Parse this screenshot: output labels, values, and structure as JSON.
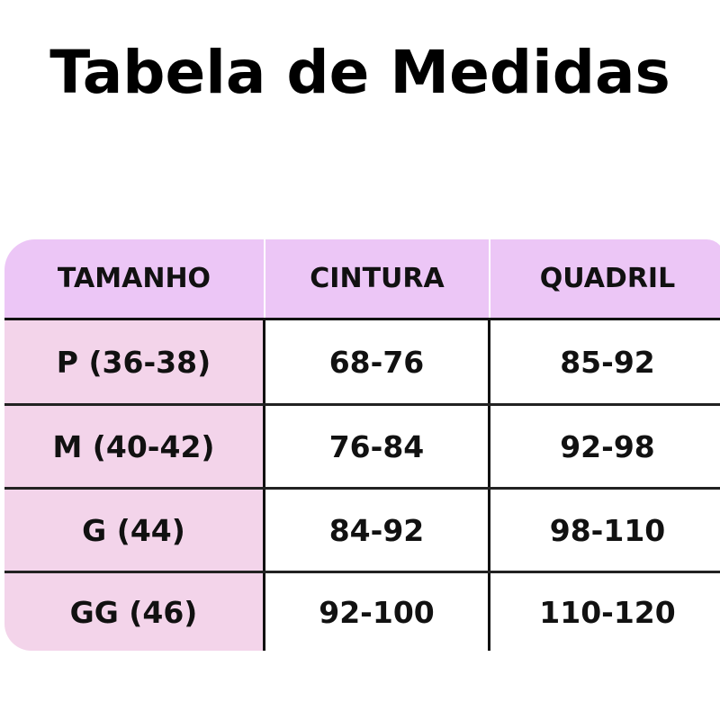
{
  "title": "Tabela de Medidas",
  "colors": {
    "header_bg": "#ecc6f6",
    "size_column_bg": "#f3d4ea"
  },
  "table": {
    "headers": [
      "TAMANHO",
      "CINTURA",
      "QUADRIL"
    ],
    "rows": [
      [
        "P (36-38)",
        "68-76",
        "85-92"
      ],
      [
        "M (40-42)",
        "76-84",
        "92-98"
      ],
      [
        "G (44)",
        "84-92",
        "98-110"
      ],
      [
        "GG (46)",
        "92-100",
        "110-120"
      ]
    ]
  }
}
